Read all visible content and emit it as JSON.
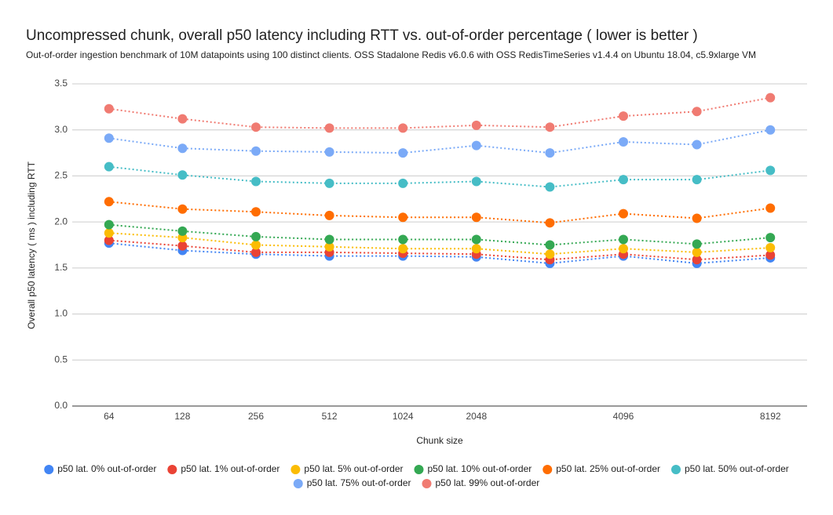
{
  "chart_data": {
    "type": "line",
    "title": "Uncompressed chunk, overall p50 latency including RTT vs. out-of-order percentage ( lower is better )",
    "subtitle": "Out-of-order ingestion benchmark of 10M datapoints using 100 distinct clients. OSS Stadalone Redis v6.0.6 with OSS RedisTimeSeries v1.4.4 on Ubuntu 18.04, c5.9xlarge VM",
    "x_label": "Chunk size",
    "y_label": "Overall p50 latency ( ms ) including RTT",
    "categories": [
      "64",
      "128",
      "256",
      "512",
      "1024",
      "2048",
      null,
      "4096",
      null,
      "8192"
    ],
    "ylim": [
      0,
      3.5
    ],
    "yticks": [
      {
        "value": 0,
        "label": "0.0"
      },
      {
        "value": 0.5,
        "label": "0.5"
      },
      {
        "value": 1,
        "label": "1.0"
      },
      {
        "value": 1.5,
        "label": "1.5"
      },
      {
        "value": 2,
        "label": "2.0"
      },
      {
        "value": 2.5,
        "label": "2.5"
      },
      {
        "value": 3,
        "label": "3.0"
      },
      {
        "value": 3.5,
        "label": "3.5"
      }
    ],
    "grid": true,
    "legend": "bottom",
    "series": [
      {
        "name": "p50 lat. 0% out-of-order",
        "color": "#4285f4",
        "values": [
          1.77,
          1.69,
          1.65,
          1.63,
          1.63,
          1.62,
          1.55,
          1.63,
          1.55,
          1.61
        ]
      },
      {
        "name": "p50 lat. 1% out-of-order",
        "color": "#ea4335",
        "values": [
          1.8,
          1.74,
          1.67,
          1.67,
          1.66,
          1.65,
          1.59,
          1.65,
          1.59,
          1.64
        ]
      },
      {
        "name": "p50 lat. 5% out-of-order",
        "color": "#fbbc04",
        "values": [
          1.88,
          1.83,
          1.75,
          1.73,
          1.71,
          1.71,
          1.65,
          1.71,
          1.67,
          1.72
        ]
      },
      {
        "name": "p50 lat. 10% out-of-order",
        "color": "#34a853",
        "values": [
          1.97,
          1.9,
          1.84,
          1.81,
          1.81,
          1.81,
          1.75,
          1.81,
          1.76,
          1.83
        ]
      },
      {
        "name": "p50 lat. 25% out-of-order",
        "color": "#ff6d01",
        "values": [
          2.22,
          2.14,
          2.11,
          2.07,
          2.05,
          2.05,
          1.99,
          2.09,
          2.04,
          2.15
        ]
      },
      {
        "name": "p50 lat. 50% out-of-order",
        "color": "#46bdc6",
        "values": [
          2.6,
          2.51,
          2.44,
          2.42,
          2.42,
          2.44,
          2.38,
          2.46,
          2.46,
          2.56
        ]
      },
      {
        "name": "p50 lat. 75% out-of-order",
        "color": "#7baaf7",
        "values": [
          2.91,
          2.8,
          2.77,
          2.76,
          2.75,
          2.83,
          2.75,
          2.87,
          2.84,
          3.0
        ]
      },
      {
        "name": "p50 lat. 99% out-of-order",
        "color": "#f07b72",
        "values": [
          3.23,
          3.12,
          3.03,
          3.02,
          3.02,
          3.05,
          3.03,
          3.15,
          3.2,
          3.35
        ]
      }
    ]
  }
}
